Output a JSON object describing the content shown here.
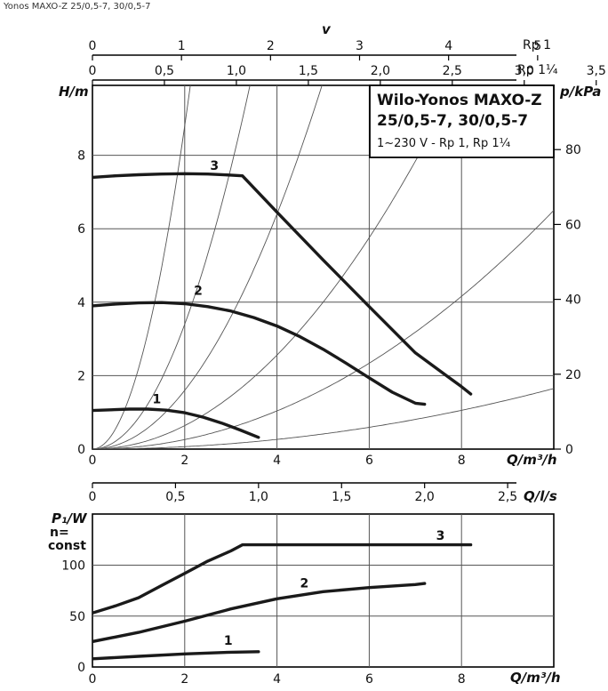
{
  "header": {
    "text": "Yonos MAXO-Z 25/0,5-7, 30/0,5-7"
  },
  "colors": {
    "curve": "#1a1a1a",
    "grid": "#555555",
    "system": "#555555",
    "frame": "#000000"
  },
  "chart_data": [
    {
      "type": "line",
      "name": "head-curve",
      "title": "Wilo-Yonos MAXO-Z",
      "title_line2": "25/0,5-7, 30/0,5-7",
      "subtitle": "1~230 V - Rp 1, Rp 1¼",
      "xlabel": "Q/m³/h",
      "ylabel": "H/m",
      "ylabel_right": "p/kPa",
      "top_axis_title": "v",
      "top_axis_1": {
        "label": "Rp 1",
        "ticks": [
          "0",
          "1",
          "2",
          "3",
          "4",
          "5"
        ],
        "values": [
          0,
          1,
          2,
          3,
          4,
          5
        ]
      },
      "top_axis_2": {
        "label": "Rp 1¼",
        "ticks": [
          "0",
          "0,5",
          "1,0",
          "1,5",
          "2,0",
          "2,5",
          "3,0",
          "3,5"
        ],
        "values": [
          0,
          0.5,
          1.0,
          1.5,
          2.0,
          2.5,
          3.0,
          3.5
        ]
      },
      "xlim": [
        0,
        10
      ],
      "ylim": [
        0,
        10
      ],
      "x_ticks": [
        "0",
        "2",
        "4",
        "6",
        "8"
      ],
      "x_tick_values": [
        0,
        2,
        4,
        6,
        8
      ],
      "y_ticks": [
        "0",
        "2",
        "4",
        "6",
        "8"
      ],
      "y_tick_values": [
        0,
        2,
        4,
        6,
        8
      ],
      "y_right_ticks": [
        "0",
        "20",
        "40",
        "60",
        "80"
      ],
      "y_right_values": [
        0,
        20,
        40,
        60,
        80
      ],
      "grid": true,
      "series": [
        {
          "name": "1",
          "x": [
            0,
            0.4,
            0.8,
            1.2,
            1.6,
            2.0,
            2.4,
            2.8,
            3.2,
            3.6
          ],
          "y": [
            1.05,
            1.07,
            1.09,
            1.09,
            1.06,
            0.99,
            0.87,
            0.71,
            0.52,
            0.32
          ]
        },
        {
          "name": "2",
          "x": [
            0,
            0.5,
            1.0,
            1.5,
            2.0,
            2.5,
            3.0,
            3.5,
            4.0,
            4.5,
            5.0,
            5.5,
            6.0,
            6.5,
            7.0,
            7.2
          ],
          "y": [
            3.9,
            3.95,
            3.98,
            3.99,
            3.96,
            3.88,
            3.76,
            3.58,
            3.35,
            3.06,
            2.72,
            2.34,
            1.94,
            1.55,
            1.25,
            1.22
          ]
        },
        {
          "name": "3",
          "x": [
            0,
            0.5,
            1.0,
            1.5,
            2.0,
            2.5,
            3.0,
            3.25,
            4.0,
            5.0,
            6.0,
            7.0,
            8.0,
            8.2
          ],
          "y": [
            7.4,
            7.44,
            7.47,
            7.49,
            7.5,
            7.49,
            7.46,
            7.44,
            6.45,
            5.15,
            3.88,
            2.62,
            1.7,
            1.5
          ]
        }
      ],
      "system_curves": [
        {
          "k": 2.2
        },
        {
          "k": 0.85
        },
        {
          "k": 0.4
        },
        {
          "k": 0.16
        },
        {
          "k": 0.065
        },
        {
          "k": 0.0165
        }
      ]
    },
    {
      "type": "line",
      "name": "power-curve",
      "xlabel": "Q/m³/h",
      "ylabel": "P₁/W",
      "ylabel_line2": "n=",
      "ylabel_line3": "const",
      "top_axis": {
        "label": "Q/l/s",
        "ticks": [
          "0",
          "0,5",
          "1,0",
          "1,5",
          "2,0",
          "2,5"
        ],
        "values": [
          0,
          0.5,
          1.0,
          1.5,
          2.0,
          2.5
        ]
      },
      "xlim": [
        0,
        10
      ],
      "ylim": [
        0,
        150
      ],
      "x_ticks": [
        "0",
        "2",
        "4",
        "6",
        "8"
      ],
      "x_tick_values": [
        0,
        2,
        4,
        6,
        8
      ],
      "y_ticks": [
        "0",
        "50",
        "100"
      ],
      "y_tick_values": [
        0,
        50,
        100
      ],
      "grid": true,
      "series": [
        {
          "name": "1",
          "x": [
            0,
            1.0,
            2.0,
            3.0,
            3.6
          ],
          "y": [
            8,
            10.5,
            12.8,
            14.5,
            15
          ]
        },
        {
          "name": "2",
          "x": [
            0,
            1.0,
            2.0,
            3.0,
            4.0,
            5.0,
            6.0,
            7.0,
            7.2
          ],
          "y": [
            25,
            34,
            45,
            57,
            67,
            74,
            78,
            81,
            82
          ]
        },
        {
          "name": "3",
          "x": [
            0,
            0.5,
            1.0,
            1.5,
            2.0,
            2.5,
            3.0,
            3.25,
            5.0,
            8.2
          ],
          "y": [
            53,
            60,
            68,
            80,
            92,
            104,
            114,
            120,
            120,
            120
          ]
        }
      ]
    }
  ]
}
